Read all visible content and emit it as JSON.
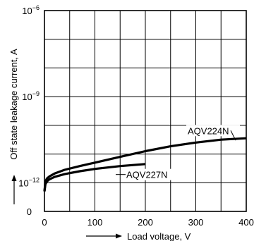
{
  "chart_data": {
    "type": "line",
    "xlabel": "Load voltage, V",
    "ylabel": "Off state leakage current, A",
    "xlim": [
      0,
      400
    ],
    "x_ticks": [
      {
        "value": 0,
        "label": "0"
      },
      {
        "value": 100,
        "label": "100"
      },
      {
        "value": 200,
        "label": "200"
      },
      {
        "value": 300,
        "label": "300"
      },
      {
        "value": 400,
        "label": "400"
      }
    ],
    "y_scale": "log",
    "ylim_exponent": [
      -13,
      -6
    ],
    "y_ticks": [
      {
        "exponent": -6,
        "base": "10",
        "sup": "−6"
      },
      {
        "exponent": -9,
        "base": "10",
        "sup": "−9"
      },
      {
        "exponent": -12,
        "base": "10",
        "sup": "−12"
      }
    ],
    "y_zero_label": "0",
    "grid": true,
    "series": [
      {
        "name": "AQV224N",
        "x": [
          0,
          2,
          5,
          10,
          20,
          40,
          70,
          100,
          150,
          200,
          250,
          300,
          350,
          400
        ],
        "y_exponent": [
          -12.3,
          -11.95,
          -11.85,
          -11.78,
          -11.68,
          -11.55,
          -11.42,
          -11.3,
          -11.1,
          -10.9,
          -10.73,
          -10.6,
          -10.5,
          -10.45
        ]
      },
      {
        "name": "AQV227N",
        "x": [
          0,
          2,
          5,
          10,
          20,
          40,
          70,
          100,
          150,
          200
        ],
        "y_exponent": [
          -12.3,
          -12.05,
          -11.95,
          -11.88,
          -11.8,
          -11.7,
          -11.6,
          -11.52,
          -11.42,
          -11.35
        ]
      }
    ],
    "annotations": [
      {
        "text": "AQV224N",
        "series": "AQV224N"
      },
      {
        "text": "AQV227N",
        "series": "AQV227N"
      }
    ]
  }
}
